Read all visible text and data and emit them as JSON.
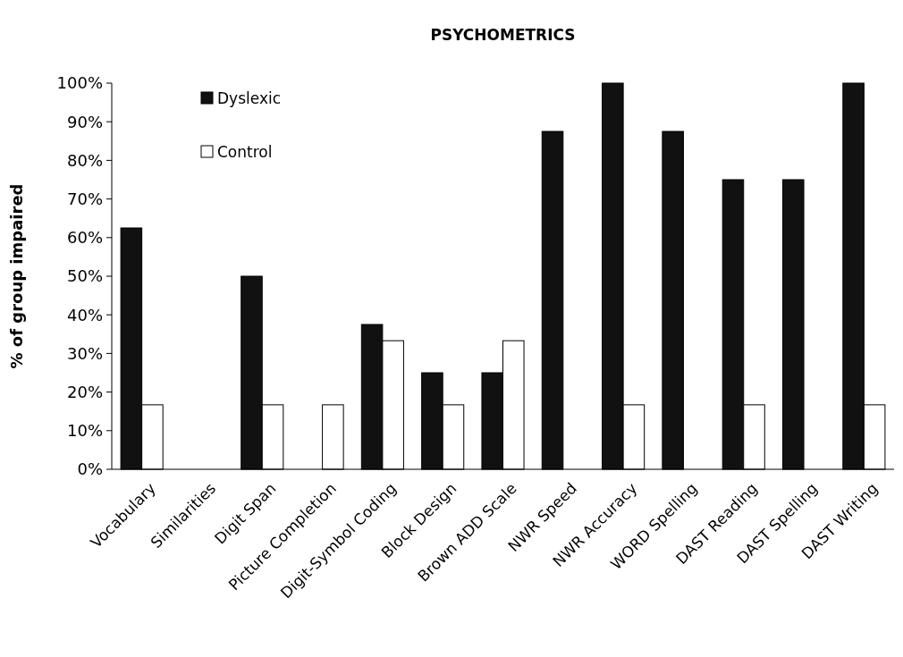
{
  "chart_data": {
    "type": "bar",
    "title": "PSYCHOMETRICS",
    "ylabel": "% of group impaired",
    "categories": [
      "Vocabulary",
      "Similarities",
      "Digit Span",
      "Picture Completion",
      "Digit-Symbol Coding",
      "Block Design",
      "Brown ADD Scale",
      "NWR Speed",
      "NWR Accuracy",
      "WORD Spelling",
      "DAST Reading",
      "DAST Spelling",
      "DAST Writing"
    ],
    "series": [
      {
        "name": "Dyslexic",
        "color": "#111111",
        "values": [
          62.5,
          0,
          50,
          0,
          37.5,
          25,
          25,
          87.5,
          100,
          87.5,
          75,
          75,
          100
        ]
      },
      {
        "name": "Control",
        "color": "#ffffff",
        "values": [
          16.7,
          0,
          16.7,
          16.7,
          33.3,
          16.7,
          33.3,
          0,
          16.7,
          0,
          16.7,
          0,
          16.7
        ]
      }
    ],
    "ylim": [
      0,
      100
    ],
    "yticks": [
      {
        "value": 0,
        "label": "0%"
      },
      {
        "value": 10,
        "label": "10%"
      },
      {
        "value": 20,
        "label": "20%"
      },
      {
        "value": 30,
        "label": "30%"
      },
      {
        "value": 40,
        "label": "40%"
      },
      {
        "value": 50,
        "label": "50%"
      },
      {
        "value": 60,
        "label": "60%"
      },
      {
        "value": 70,
        "label": "70%"
      },
      {
        "value": 80,
        "label": "80%"
      },
      {
        "value": 90,
        "label": "90%"
      },
      {
        "value": 100,
        "label": "100%"
      }
    ],
    "grid": false,
    "legend": "top left"
  }
}
